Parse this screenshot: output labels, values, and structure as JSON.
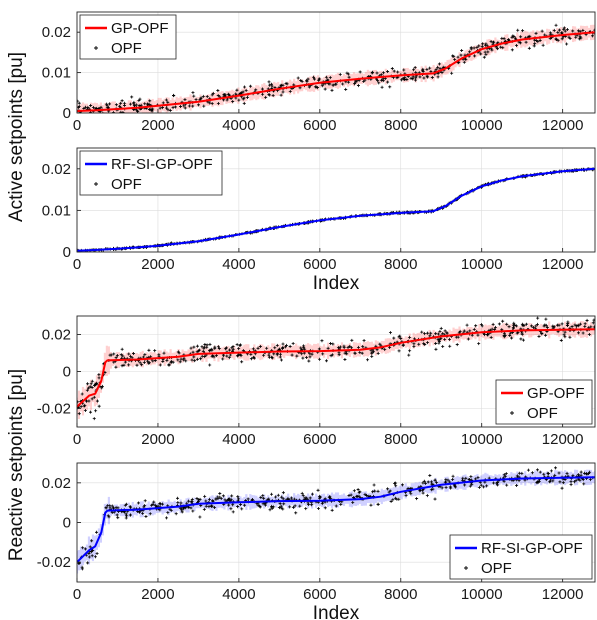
{
  "figure": {
    "ylabels": [
      "Active setpoints [pu]",
      "Reactive setpoints [pu]"
    ]
  },
  "chart_data": [
    {
      "type": "line",
      "xlabel": "",
      "xlim": [
        0,
        12800
      ],
      "ylim": [
        0,
        0.025
      ],
      "xticks": [
        0,
        2000,
        4000,
        6000,
        8000,
        10000,
        12000
      ],
      "yticks": [
        0,
        0.01,
        0.02
      ],
      "xtick_labels": [
        "0",
        "2000",
        "4000",
        "6000",
        "8000",
        "10000",
        "12000"
      ],
      "ytick_labels": [
        "0",
        "0.01",
        "0.02"
      ],
      "grid": true,
      "legend": "top-left",
      "series": [
        {
          "name": "GP-OPF",
          "kind": "mean-with-confidence-band",
          "color": "#ff0000",
          "x": [
            0,
            500,
            1000,
            1500,
            2000,
            3000,
            4000,
            5000,
            6000,
            7000,
            8000,
            8800,
            9100,
            9500,
            10000,
            10500,
            11000,
            12000,
            12800
          ],
          "y": [
            0.0005,
            0.0007,
            0.001,
            0.0013,
            0.0018,
            0.0028,
            0.0043,
            0.006,
            0.0075,
            0.0085,
            0.0093,
            0.0098,
            0.011,
            0.0135,
            0.0158,
            0.0172,
            0.0182,
            0.0193,
            0.02
          ],
          "band_halfwidth": 0.0018
        },
        {
          "name": "OPF",
          "kind": "scatter",
          "marker": "+",
          "color": "#000000",
          "spread": 0.0009
        }
      ]
    },
    {
      "type": "line",
      "xlabel": "Index",
      "xlim": [
        0,
        12800
      ],
      "ylim": [
        0,
        0.025
      ],
      "xticks": [
        0,
        2000,
        4000,
        6000,
        8000,
        10000,
        12000
      ],
      "yticks": [
        0,
        0.01,
        0.02
      ],
      "xtick_labels": [
        "0",
        "2000",
        "4000",
        "6000",
        "8000",
        "10000",
        "12000"
      ],
      "ytick_labels": [
        "0",
        "0.01",
        "0.02"
      ],
      "grid": true,
      "legend": "top-left",
      "series": [
        {
          "name": "RF-SI-GP-OPF",
          "kind": "mean-with-confidence-band",
          "color": "#0000ff",
          "x": [
            0,
            500,
            1000,
            1500,
            2000,
            3000,
            4000,
            5000,
            6000,
            7000,
            8000,
            8800,
            9100,
            9500,
            10000,
            10500,
            11000,
            12000,
            12800
          ],
          "y": [
            0.0003,
            0.0005,
            0.0008,
            0.0011,
            0.0015,
            0.0026,
            0.0042,
            0.006,
            0.0076,
            0.0087,
            0.0094,
            0.0098,
            0.011,
            0.0135,
            0.0158,
            0.0172,
            0.0182,
            0.0194,
            0.02
          ],
          "band_halfwidth": 0.0002
        },
        {
          "name": "OPF",
          "kind": "scatter",
          "marker": "+",
          "color": "#000000",
          "spread": 0.0001
        }
      ]
    },
    {
      "type": "line",
      "xlabel": "",
      "xlim": [
        0,
        12800
      ],
      "ylim": [
        -0.03,
        0.03
      ],
      "xticks": [
        0,
        2000,
        4000,
        6000,
        8000,
        10000,
        12000
      ],
      "yticks": [
        -0.02,
        0,
        0.02
      ],
      "xtick_labels": [
        "0",
        "2000",
        "4000",
        "6000",
        "8000",
        "10000",
        "12000"
      ],
      "ytick_labels": [
        "-0.02",
        "0",
        "0.02"
      ],
      "grid": true,
      "legend": "bottom-right",
      "series": [
        {
          "name": "GP-OPF",
          "kind": "mean-with-confidence-band",
          "color": "#ff0000",
          "x": [
            0,
            150,
            300,
            450,
            600,
            700,
            750,
            1500,
            2500,
            3000,
            4000,
            5000,
            6000,
            7000,
            7500,
            8000,
            9000,
            10000,
            11000,
            12000,
            12800
          ],
          "y": [
            -0.019,
            -0.016,
            -0.013,
            -0.012,
            -0.005,
            0.005,
            0.006,
            0.0065,
            0.008,
            0.0095,
            0.0102,
            0.0108,
            0.011,
            0.0118,
            0.013,
            0.0155,
            0.019,
            0.0212,
            0.0222,
            0.0226,
            0.0228
          ],
          "band_halfwidth": 0.004
        },
        {
          "name": "OPF",
          "kind": "scatter",
          "marker": "+",
          "color": "#000000",
          "spread": 0.0025
        }
      ]
    },
    {
      "type": "line",
      "xlabel": "Index",
      "xlim": [
        0,
        12800
      ],
      "ylim": [
        -0.03,
        0.03
      ],
      "xticks": [
        0,
        2000,
        4000,
        6000,
        8000,
        10000,
        12000
      ],
      "yticks": [
        -0.02,
        0,
        0.02
      ],
      "xtick_labels": [
        "0",
        "2000",
        "4000",
        "6000",
        "8000",
        "10000",
        "12000"
      ],
      "ytick_labels": [
        "-0.02",
        "0",
        "0.02"
      ],
      "grid": true,
      "legend": "bottom-right",
      "series": [
        {
          "name": "RF-SI-GP-OPF",
          "kind": "mean-with-confidence-band",
          "color": "#0000ff",
          "x": [
            0,
            150,
            300,
            450,
            600,
            700,
            750,
            1500,
            2500,
            3000,
            4000,
            5000,
            6000,
            7000,
            7500,
            8000,
            9000,
            10000,
            11000,
            12000,
            12800
          ],
          "y": [
            -0.02,
            -0.017,
            -0.014,
            -0.012,
            -0.005,
            0.005,
            0.006,
            0.0065,
            0.008,
            0.0095,
            0.0102,
            0.0108,
            0.011,
            0.0118,
            0.013,
            0.0155,
            0.019,
            0.0212,
            0.0222,
            0.0226,
            0.0228
          ],
          "band_halfwidth": 0.0035
        },
        {
          "name": "OPF",
          "kind": "scatter",
          "marker": "+",
          "color": "#000000",
          "spread": 0.002
        }
      ]
    }
  ]
}
